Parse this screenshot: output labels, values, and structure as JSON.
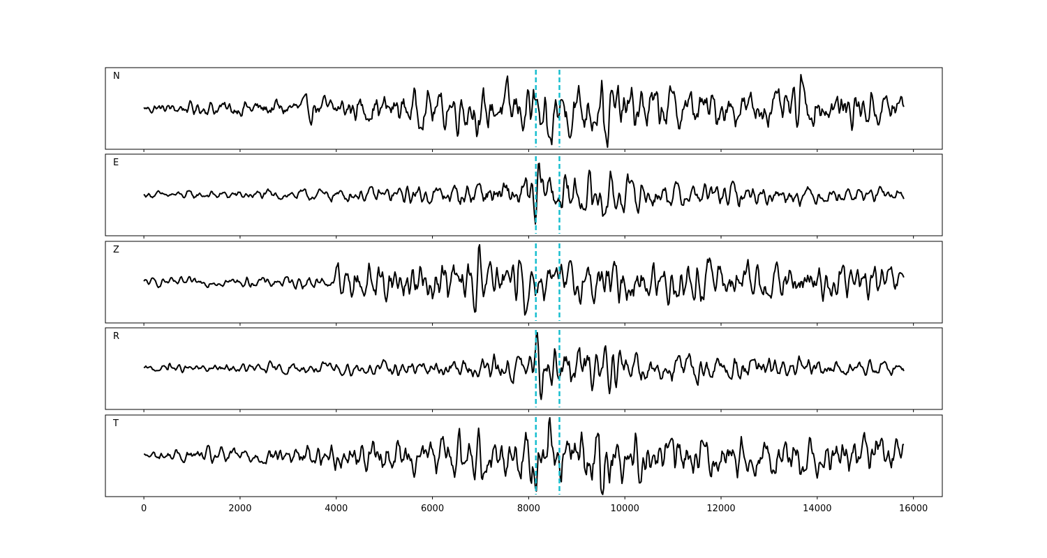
{
  "chart_data": {
    "type": "line",
    "xlim": [
      -800,
      16600
    ],
    "xticks": [
      0,
      2000,
      4000,
      6000,
      8000,
      10000,
      12000,
      14000,
      16000
    ],
    "x_start": 0,
    "x_end": 15800,
    "trace_color": "#000000",
    "pick_color": "#17becf",
    "picks": [
      8150,
      8640
    ],
    "panels": [
      {
        "label": "N",
        "baseline": 0,
        "ylim": [
          -1.3,
          1.3
        ],
        "noise": [
          [
            0,
            0.08
          ],
          [
            4000,
            0.2
          ],
          [
            6800,
            0.35
          ],
          [
            9000,
            0.45
          ],
          [
            12000,
            0.3
          ],
          [
            15800,
            0.3
          ]
        ],
        "events": [
          {
            "x": 8300,
            "amp": -1.1,
            "w": 60
          },
          {
            "x": 8450,
            "amp": -1.15,
            "w": 60
          },
          {
            "x": 9600,
            "amp": -1.15,
            "w": 70
          },
          {
            "x": 9530,
            "amp": 0.95,
            "w": 60
          },
          {
            "x": 13650,
            "amp": 0.95,
            "w": 70
          },
          {
            "x": 13620,
            "amp": -0.7,
            "w": 60
          },
          {
            "x": 7000,
            "amp": -0.7,
            "w": 60
          }
        ]
      },
      {
        "label": "E",
        "baseline": 0,
        "ylim": [
          -1.3,
          1.3
        ],
        "noise": [
          [
            0,
            0.05
          ],
          [
            4000,
            0.1
          ],
          [
            6800,
            0.18
          ],
          [
            8100,
            0.3
          ],
          [
            9000,
            0.35
          ],
          [
            11000,
            0.2
          ],
          [
            15800,
            0.1
          ]
        ],
        "events": [
          {
            "x": 8200,
            "amp": 0.95,
            "w": 55
          },
          {
            "x": 8150,
            "amp": -1.2,
            "w": 45
          },
          {
            "x": 8380,
            "amp": 0.5,
            "w": 55
          },
          {
            "x": 6980,
            "amp": 0.35,
            "w": 60
          },
          {
            "x": 9550,
            "amp": -0.4,
            "w": 60
          }
        ]
      },
      {
        "label": "Z",
        "baseline": 0,
        "ylim": [
          -1.3,
          1.3
        ],
        "noise": [
          [
            0,
            0.06
          ],
          [
            3950,
            0.1
          ],
          [
            4100,
            0.3
          ],
          [
            6500,
            0.35
          ],
          [
            8200,
            0.3
          ],
          [
            11000,
            0.35
          ],
          [
            15800,
            0.25
          ]
        ],
        "events": [
          {
            "x": 4040,
            "amp": 0.75,
            "w": 40
          },
          {
            "x": 4090,
            "amp": -0.8,
            "w": 40
          },
          {
            "x": 6980,
            "amp": 1.2,
            "w": 55
          },
          {
            "x": 6900,
            "amp": -0.95,
            "w": 55
          },
          {
            "x": 7820,
            "amp": 0.8,
            "w": 60
          },
          {
            "x": 7920,
            "amp": -0.75,
            "w": 60
          },
          {
            "x": 11750,
            "amp": 0.55,
            "w": 60
          }
        ]
      },
      {
        "label": "R",
        "baseline": 0,
        "ylim": [
          -1.3,
          1.3
        ],
        "noise": [
          [
            0,
            0.05
          ],
          [
            4000,
            0.1
          ],
          [
            6800,
            0.15
          ],
          [
            8100,
            0.25
          ],
          [
            9000,
            0.35
          ],
          [
            10500,
            0.25
          ],
          [
            15800,
            0.1
          ]
        ],
        "events": [
          {
            "x": 8200,
            "amp": 1.15,
            "w": 50
          },
          {
            "x": 8250,
            "amp": -0.95,
            "w": 50
          },
          {
            "x": 8400,
            "amp": 0.45,
            "w": 55
          },
          {
            "x": 530,
            "amp": 0.22,
            "w": 30
          },
          {
            "x": 9580,
            "amp": 0.45,
            "w": 60
          },
          {
            "x": 10250,
            "amp": 0.5,
            "w": 55
          }
        ]
      },
      {
        "label": "T",
        "baseline": 0,
        "ylim": [
          -1.3,
          1.3
        ],
        "noise": [
          [
            0,
            0.08
          ],
          [
            4000,
            0.2
          ],
          [
            6800,
            0.35
          ],
          [
            9000,
            0.45
          ],
          [
            12000,
            0.3
          ],
          [
            15800,
            0.3
          ]
        ],
        "events": [
          {
            "x": 8150,
            "amp": -1.25,
            "w": 45
          },
          {
            "x": 8200,
            "amp": 1.0,
            "w": 45
          },
          {
            "x": 8450,
            "amp": 1.0,
            "w": 55
          },
          {
            "x": 9530,
            "amp": -0.85,
            "w": 60
          },
          {
            "x": 13650,
            "amp": -0.95,
            "w": 65
          },
          {
            "x": 13600,
            "amp": 0.65,
            "w": 60
          },
          {
            "x": 15250,
            "amp": 0.55,
            "w": 60
          }
        ]
      }
    ]
  }
}
